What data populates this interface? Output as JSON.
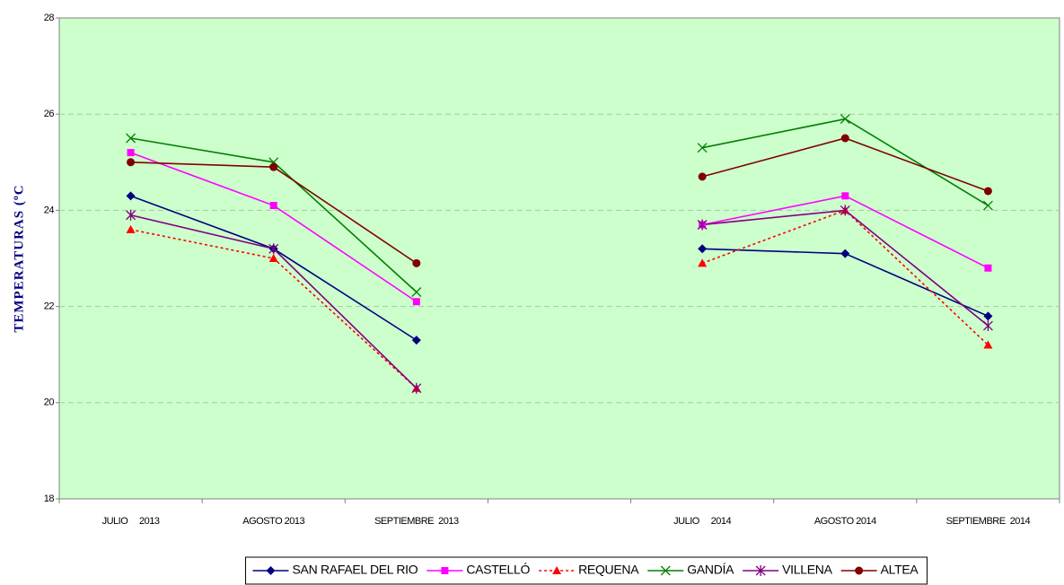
{
  "chart_data": {
    "type": "line",
    "y_label": "TEMPERATURAS (ºC",
    "categories": [
      "JULIO     2013",
      "AGOSTO 2013",
      "SEPTIEMBRE  2013",
      null,
      "JULIO     2014",
      "AGOSTO 2014",
      "SEPTIEMBRE  2014"
    ],
    "series": [
      {
        "name": "SAN RAFAEL DEL RIO",
        "color": "#000080",
        "marker": "diamond",
        "values": [
          24.3,
          23.2,
          21.3,
          null,
          23.2,
          23.1,
          21.8
        ]
      },
      {
        "name": "CASTELLÓ",
        "color": "#ff00ff",
        "marker": "square",
        "values": [
          25.2,
          24.1,
          22.1,
          null,
          23.7,
          24.3,
          22.8
        ]
      },
      {
        "name": "REQUENA",
        "color": "#ff0000",
        "marker": "triangle",
        "dashed": true,
        "values": [
          23.6,
          23.0,
          20.3,
          null,
          22.9,
          24.0,
          21.2
        ]
      },
      {
        "name": "GANDÍA",
        "color": "#008000",
        "marker": "x",
        "values": [
          25.5,
          25.0,
          22.3,
          null,
          25.3,
          25.9,
          24.1
        ]
      },
      {
        "name": "VILLENA",
        "color": "#800080",
        "marker": "star",
        "values": [
          23.9,
          23.2,
          20.3,
          null,
          23.7,
          24.0,
          21.6
        ]
      },
      {
        "name": "ALTEA",
        "color": "#800000",
        "marker": "circle",
        "values": [
          25.0,
          24.9,
          22.9,
          null,
          24.7,
          25.5,
          24.4
        ]
      }
    ],
    "ylim": [
      18,
      28
    ],
    "yticks": [
      18,
      20,
      22,
      24,
      26,
      28
    ],
    "grid": true,
    "legend": "bottom"
  }
}
